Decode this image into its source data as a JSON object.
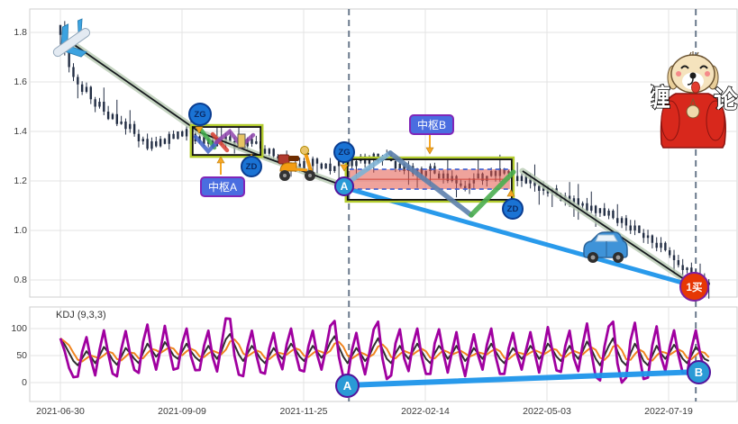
{
  "indicator": {
    "label": "KDJ (9,3,3)"
  },
  "watermark": {
    "left_char": "缠",
    "right_char": "论"
  },
  "badges": {
    "zg_a": "ZG",
    "zd_a": "ZD",
    "zg_b": "ZG",
    "zd_b": "ZD",
    "point_a": "A",
    "pivot_a": "中枢A",
    "pivot_b": "中枢B",
    "buy": "1买",
    "kdj_a": "A",
    "kdj_b": "B"
  },
  "colors": {
    "candle": "#232e44",
    "grid": "#e3e3e3",
    "border": "#cfcfcf",
    "blue_line": "#1e95ea",
    "glow": "#b7c9b1",
    "glow_core": "#15181d",
    "dashed_vline": "#6b7a8d",
    "box_outer": "#b3cc2e",
    "box_inner": "#101010",
    "band_fill": "rgba(226,88,74,0.55)",
    "band_dash": "#3f5fd0",
    "band_mid": "#d2453a",
    "kdj_k": "#2f2f2f",
    "kdj_d": "#f0841e",
    "kdj_j": "#a000a0",
    "arrow": "#f5a623",
    "zigzag": [
      "#7fb3d5",
      "#5e81ad",
      "#4caf50"
    ]
  },
  "chart_data": {
    "type": "candlestick",
    "title": "",
    "panels": [
      "price",
      "KDJ (9,3,3)"
    ],
    "x_axis": {
      "tick_labels": [
        "2021-06-30",
        "2021-09-09",
        "2021-11-25",
        "2022-02-14",
        "2022-05-03",
        "2022-07-19"
      ]
    },
    "y_axis": {
      "tick_labels": [
        "1.8",
        "1.6",
        "1.4",
        "1.2",
        "1.0",
        "0.8"
      ],
      "tick_values": [
        1.8,
        1.6,
        1.4,
        1.2,
        1.0,
        0.8
      ],
      "range": [
        0.73,
        1.91
      ]
    },
    "open_first": 1.83,
    "price_closes": [
      1.79,
      1.72,
      1.66,
      1.62,
      1.59,
      1.56,
      1.58,
      1.53,
      1.5,
      1.52,
      1.48,
      1.45,
      1.47,
      1.43,
      1.44,
      1.41,
      1.43,
      1.39,
      1.36,
      1.37,
      1.33,
      1.36,
      1.34,
      1.37,
      1.35,
      1.39,
      1.37,
      1.4,
      1.38,
      1.41,
      1.39,
      1.36,
      1.38,
      1.35,
      1.37,
      1.34,
      1.37,
      1.35,
      1.38,
      1.36,
      1.33,
      1.36,
      1.34,
      1.37,
      1.35,
      1.36,
      1.33,
      1.31,
      1.33,
      1.3,
      1.28,
      1.3,
      1.26,
      1.24,
      1.27,
      1.25,
      1.28,
      1.26,
      1.29,
      1.27,
      1.25,
      1.27,
      1.24,
      1.26,
      1.28,
      1.27,
      1.29,
      1.26,
      1.28,
      1.3,
      1.27,
      1.29,
      1.31,
      1.28,
      1.3,
      1.31,
      1.28,
      1.25,
      1.27,
      1.24,
      1.26,
      1.23,
      1.25,
      1.22,
      1.24,
      1.26,
      1.23,
      1.21,
      1.23,
      1.2,
      1.22,
      1.19,
      1.18,
      1.17,
      1.19,
      1.21,
      1.23,
      1.2,
      1.22,
      1.24,
      1.22,
      1.25,
      1.23,
      1.24,
      1.22,
      1.2,
      1.22,
      1.19,
      1.21,
      1.18,
      1.16,
      1.18,
      1.15,
      1.17,
      1.14,
      1.12,
      1.14,
      1.11,
      1.13,
      1.1,
      1.11,
      1.08,
      1.1,
      1.07,
      1.09,
      1.06,
      1.08,
      1.05,
      1.03,
      1.05,
      1.02,
      1.0,
      1.02,
      0.99,
      0.97,
      0.98,
      0.95,
      0.93,
      0.95,
      0.92,
      0.9,
      0.88,
      0.86,
      0.84,
      0.85,
      0.82,
      0.8,
      0.81,
      0.79,
      0.78
    ],
    "kdj": {
      "tick_labels": [
        "100",
        "50",
        "0"
      ],
      "tick_values": [
        100,
        50,
        0
      ],
      "k": [
        82,
        70,
        55,
        40,
        32,
        45,
        58,
        48,
        36,
        50,
        66,
        56,
        42,
        33,
        48,
        64,
        55,
        44,
        36,
        55,
        72,
        60,
        48,
        57,
        75,
        64,
        50,
        44,
        58,
        72,
        58,
        47,
        40,
        54,
        68,
        55,
        44,
        58,
        80,
        90,
        70,
        52,
        40,
        54,
        68,
        57,
        44,
        36,
        50,
        64,
        53,
        44,
        58,
        72,
        61,
        48,
        40,
        54,
        68,
        57,
        46,
        56,
        74,
        86,
        66,
        48,
        36,
        50,
        64,
        53,
        40,
        50,
        68,
        82,
        62,
        44,
        36,
        54,
        68,
        54,
        44,
        58,
        72,
        58,
        44,
        36,
        54,
        68,
        58,
        44,
        54,
        68,
        54,
        40,
        50,
        64,
        54,
        44,
        58,
        72,
        58,
        44,
        36,
        50,
        64,
        54,
        44,
        54,
        68,
        58,
        44,
        54,
        72,
        62,
        48,
        40,
        54,
        68,
        54,
        44,
        58,
        76,
        62,
        44,
        32,
        50,
        68,
        82,
        58,
        40,
        32,
        54,
        72,
        58,
        40,
        32,
        50,
        68,
        54,
        44,
        56,
        70,
        58,
        44,
        36,
        50,
        66,
        56,
        44,
        40
      ],
      "ab_line": {
        "a": [
          65.8,
          -5
        ],
        "b": [
          146.6,
          20
        ]
      }
    },
    "trend_lines": [
      {
        "name": "down-segment-1",
        "style": "glow",
        "points": [
          [
            2.7,
            1.756
          ],
          [
            32.1,
            1.396
          ],
          [
            45.5,
            1.305
          ],
          [
            64.8,
            1.182
          ]
        ]
      },
      {
        "name": "down-segment-2",
        "style": "glow",
        "points": [
          [
            106.2,
            1.24
          ],
          [
            145.1,
            0.782
          ]
        ]
      },
      {
        "name": "a-to-buy-trend",
        "style": "blue",
        "points": [
          [
            64.8,
            1.175
          ],
          [
            145.1,
            0.778
          ]
        ]
      }
    ],
    "zigzag_b": {
      "points": [
        [
          64.8,
          1.178
        ],
        [
          75.8,
          1.313
        ],
        [
          94.4,
          1.062
        ],
        [
          104.1,
          1.236
        ]
      ]
    },
    "pivot_zones": [
      {
        "label": "中枢A",
        "i0": 30.4,
        "i1": 46.0,
        "p_top": 1.418,
        "p_bottom": 1.305
      },
      {
        "label": "中枢B",
        "i0": 66.0,
        "i1": 103.7,
        "p_top": 1.287,
        "p_bottom": 1.124,
        "band_top": 1.247,
        "band_bottom": 1.167
      }
    ],
    "dashed_vlines_i": [
      66.3,
      146.0
    ],
    "buy_point": {
      "i": 145.5,
      "price": 0.775,
      "label": "1买"
    }
  }
}
